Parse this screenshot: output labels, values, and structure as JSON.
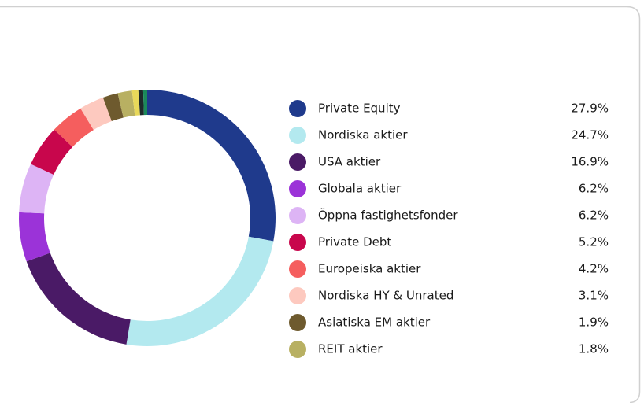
{
  "chart_data": {
    "type": "donut",
    "categories": [
      "Private Equity",
      "Nordiska aktier",
      "USA aktier",
      "Globala aktier",
      "Öppna fastighetsfonder",
      "Private Debt",
      "Europeiska aktier",
      "Nordiska HY & Unrated",
      "Asiatiska EM aktier",
      "REIT aktier",
      null,
      null,
      null
    ],
    "values": [
      27.9,
      24.7,
      16.9,
      6.2,
      6.2,
      5.2,
      4.2,
      3.1,
      1.9,
      1.8,
      0.8,
      0.6,
      0.5
    ],
    "value_labels": [
      "27.9%",
      "24.7%",
      "16.9%",
      "6.2%",
      "6.2%",
      "5.2%",
      "4.2%",
      "3.1%",
      "1.9%",
      "1.8%",
      null,
      null,
      null
    ],
    "colors": [
      "#1f3a8c",
      "#b3e9ef",
      "#4a1a66",
      "#9b33d8",
      "#ddb4f5",
      "#c8064c",
      "#f55e5e",
      "#fdc9bf",
      "#6e5a2e",
      "#b8b062",
      "#e8d85a",
      "#1e2a2a",
      "#1a8a5a"
    ]
  }
}
